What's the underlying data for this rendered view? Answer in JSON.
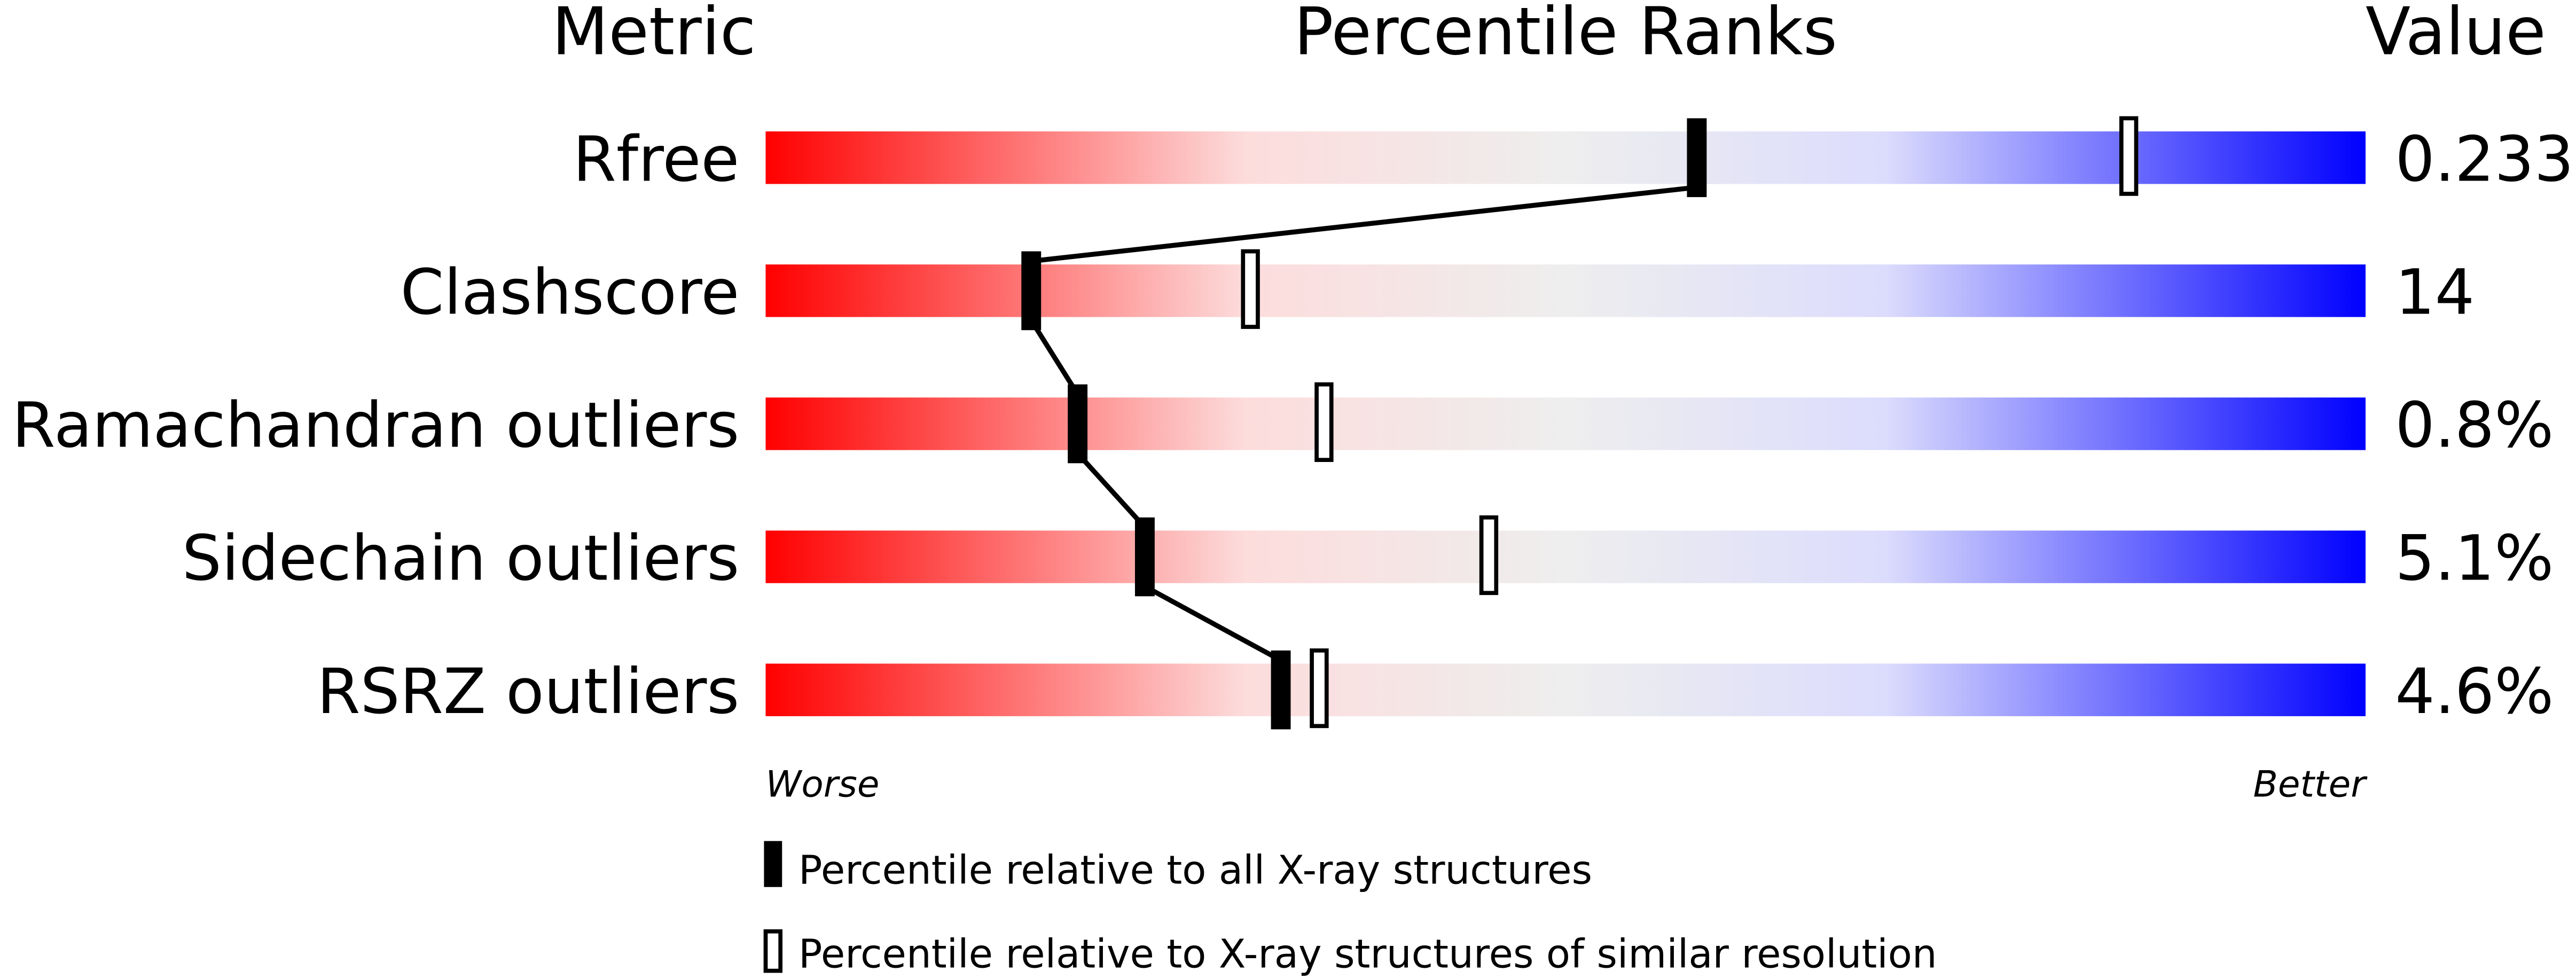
{
  "chart_data": {
    "type": "percentile-slider",
    "headers": {
      "metric": "Metric",
      "ranks": "Percentile Ranks",
      "value": "Value"
    },
    "axis": {
      "left_label": "Worse",
      "right_label": "Better",
      "range": [
        0,
        100
      ]
    },
    "gradient_colors": [
      "#ff0000",
      "#fddcdc",
      "#eeeeee",
      "#dcdcfd",
      "#0000ff"
    ],
    "metrics": [
      {
        "name": "Rfree",
        "value": "0.233",
        "percentile_all": 58.2,
        "percentile_similar": 85.2
      },
      {
        "name": "Clashscore",
        "value": "14",
        "percentile_all": 16.6,
        "percentile_similar": 30.3
      },
      {
        "name": "Ramachandran outliers",
        "value": "0.8%",
        "percentile_all": 19.5,
        "percentile_similar": 34.9
      },
      {
        "name": "Sidechain outliers",
        "value": "5.1%",
        "percentile_all": 23.7,
        "percentile_similar": 45.2
      },
      {
        "name": "RSRZ outliers",
        "value": "4.6%",
        "percentile_all": 32.2,
        "percentile_similar": 34.6
      }
    ],
    "legend": [
      {
        "marker": "filled",
        "label": "Percentile relative to all X-ray structures"
      },
      {
        "marker": "open",
        "label": "Percentile relative to X-ray structures of similar resolution"
      }
    ]
  }
}
